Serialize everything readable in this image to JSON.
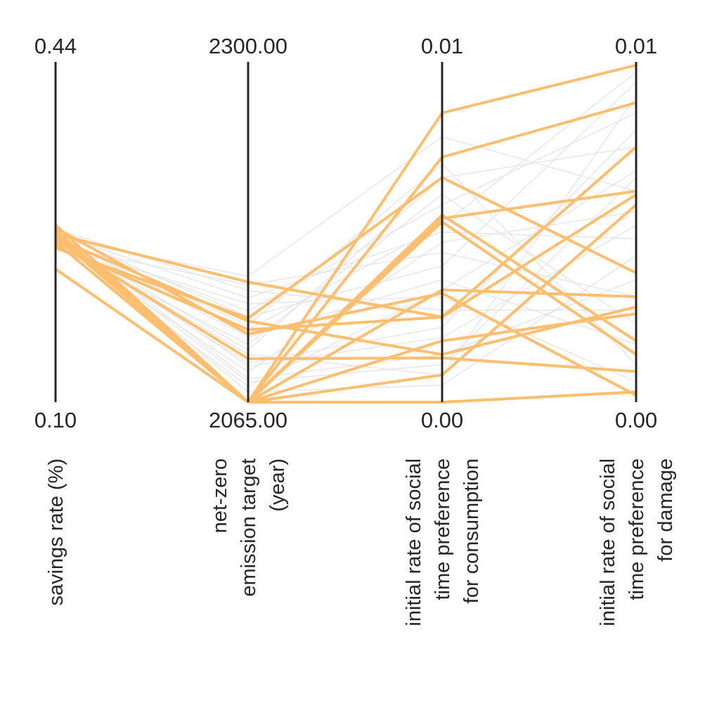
{
  "chart_data": {
    "type": "parallel-coordinates",
    "axes": [
      {
        "key": "savings",
        "label_lines": [
          "savings rate (%)"
        ],
        "min": 0.1,
        "max": 0.44,
        "min_label": "0.10",
        "max_label": "0.44"
      },
      {
        "key": "netzero",
        "label_lines": [
          "net-zero",
          "emission target",
          "(year)"
        ],
        "min": 2065,
        "max": 2300,
        "min_label": "2065.00",
        "max_label": "2300.00"
      },
      {
        "key": "srtp_consumption",
        "label_lines": [
          "initial rate of social",
          "time preference",
          "for consumption"
        ],
        "min": 0.0,
        "max": 0.01,
        "min_label": "0.00",
        "max_label": "0.01"
      },
      {
        "key": "srtp_damage",
        "label_lines": [
          "initial rate of social",
          "time preference",
          "for damage"
        ],
        "min": 0.0,
        "max": 0.01,
        "min_label": "0.00",
        "max_label": "0.01"
      }
    ],
    "highlight_color": "#fdbf6f",
    "background_color": "#e6e6e6",
    "axis_color": "#262626",
    "highlighted_series": [
      [
        0.272,
        2065,
        0.0085,
        0.0099
      ],
      [
        0.268,
        2065,
        0.0072,
        0.0088
      ],
      [
        0.266,
        2065,
        0.0054,
        0.0062
      ],
      [
        0.277,
        2065,
        0.0055,
        0.0018
      ],
      [
        0.268,
        2148,
        0.0025,
        0.0075
      ],
      [
        0.254,
        2123,
        0.0066,
        0.0038
      ],
      [
        0.26,
        2065,
        0.0033,
        0.0031
      ],
      [
        0.262,
        2095,
        0.0013,
        0.0009
      ],
      [
        0.274,
        2112,
        0.0032,
        0.0002
      ],
      [
        0.271,
        2065,
        0.0008,
        0.0058
      ],
      [
        0.27,
        2065,
        0.0018,
        0.0026
      ],
      [
        0.271,
        2065,
        0.0,
        0.0003
      ],
      [
        0.233,
        2065,
        0.0053,
        0.0014
      ],
      [
        0.256,
        2115,
        0.0025,
        0.0061
      ],
      [
        0.264,
        2121,
        0.0014,
        0.0028
      ]
    ],
    "background_series": [
      [
        0.264,
        2152,
        0.0078,
        0.0062
      ],
      [
        0.27,
        2124,
        0.004,
        0.0094
      ],
      [
        0.255,
        2105,
        0.0061,
        0.0023
      ],
      [
        0.262,
        2092,
        0.0022,
        0.008
      ],
      [
        0.268,
        2137,
        0.005,
        0.0048
      ],
      [
        0.272,
        2081,
        0.0014,
        0.0036
      ],
      [
        0.258,
        2076,
        0.0033,
        0.0068
      ],
      [
        0.266,
        2118,
        0.007,
        0.0011
      ],
      [
        0.261,
        2098,
        0.0008,
        0.009
      ],
      [
        0.273,
        2142,
        0.0027,
        0.0027
      ],
      [
        0.259,
        2086,
        0.0047,
        0.0056
      ],
      [
        0.267,
        2110,
        0.0036,
        0.0017
      ],
      [
        0.263,
        2128,
        0.0058,
        0.0085
      ],
      [
        0.27,
        2072,
        0.0005,
        0.0043
      ],
      [
        0.257,
        2133,
        0.0031,
        0.0006
      ],
      [
        0.265,
        2101,
        0.0066,
        0.0075
      ],
      [
        0.269,
        2090,
        0.0019,
        0.0052
      ],
      [
        0.256,
        2146,
        0.0044,
        0.0031
      ],
      [
        0.268,
        2079,
        0.0011,
        0.0066
      ],
      [
        0.262,
        2115,
        0.0052,
        0.0097
      ]
    ]
  }
}
